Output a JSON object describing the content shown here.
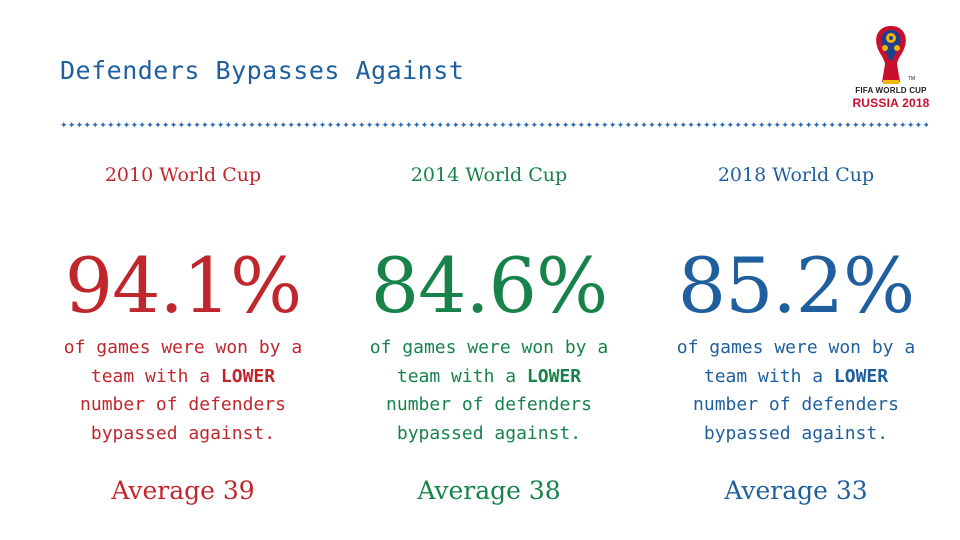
{
  "title": "Defenders Bypasses Against",
  "logo": {
    "line1": "FIFA WORLD CUP",
    "line2": "RUSSIA 2018"
  },
  "colors": {
    "title": "#1f5f9e",
    "col_2010": "#c0272d",
    "col_2014": "#17834a",
    "col_2018": "#1f5f9e"
  },
  "columns": [
    {
      "heading": "2010 World Cup",
      "percent": "94.1%",
      "desc_line1": "of games were won by a",
      "desc_line2_pre": "team with a ",
      "desc_line2_bold": "LOWER",
      "desc_line3": "number of defenders",
      "desc_line4": "bypassed against.",
      "average": "Average 39"
    },
    {
      "heading": "2014 World Cup",
      "percent": "84.6%",
      "desc_line1": "of games were won by a",
      "desc_line2_pre": "team with a ",
      "desc_line2_bold": "LOWER",
      "desc_line3": "number of defenders",
      "desc_line4": "bypassed against.",
      "average": "Average 38"
    },
    {
      "heading": "2018 World Cup",
      "percent": "85.2%",
      "desc_line1": "of games were won by a",
      "desc_line2_pre": "team with a ",
      "desc_line2_bold": "LOWER",
      "desc_line3": "number of defenders",
      "desc_line4": "bypassed against.",
      "average": "Average 33"
    }
  ]
}
